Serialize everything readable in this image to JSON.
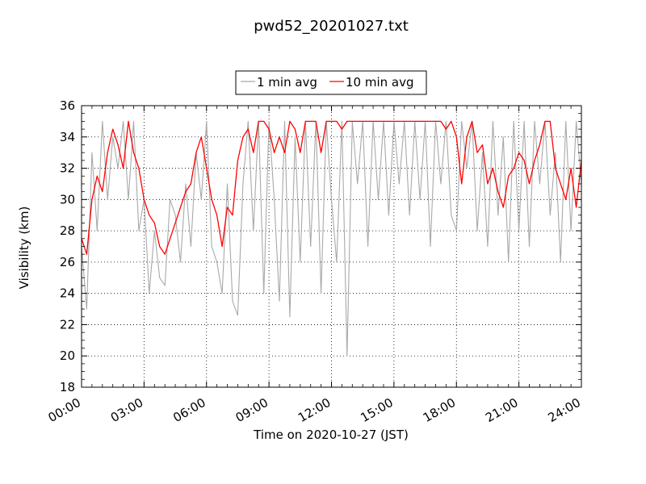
{
  "chart_data": {
    "type": "line",
    "title": "pwd52_20201027.txt",
    "xlabel": "Time on 2020-10-27 (JST)",
    "ylabel": "Visibility (km)",
    "xlim": [
      0,
      24
    ],
    "ylim": [
      18,
      36
    ],
    "x_ticks": [
      0,
      3,
      6,
      9,
      12,
      15,
      18,
      21,
      24
    ],
    "x_tick_labels": [
      "00:00",
      "03:00",
      "06:00",
      "09:00",
      "12:00",
      "15:00",
      "18:00",
      "21:00",
      "24:00"
    ],
    "y_ticks": [
      18,
      20,
      22,
      24,
      26,
      28,
      30,
      32,
      34,
      36
    ],
    "y_tick_labels": [
      "18",
      "20",
      "22",
      "24",
      "26",
      "28",
      "30",
      "32",
      "34",
      "36"
    ],
    "grid": true,
    "legend": {
      "placement": "top-center, above plot"
    },
    "colors": {
      "one_min": "#a9a9a9",
      "ten_min": "#ff0000"
    },
    "series": [
      {
        "name": "1 min avg",
        "color": "#a9a9a9",
        "x": [
          0.0,
          0.25,
          0.5,
          0.75,
          1.0,
          1.25,
          1.5,
          1.75,
          2.0,
          2.25,
          2.5,
          2.75,
          3.0,
          3.25,
          3.5,
          3.75,
          4.0,
          4.25,
          4.5,
          4.75,
          5.0,
          5.25,
          5.5,
          5.75,
          6.0,
          6.25,
          6.5,
          6.75,
          7.0,
          7.25,
          7.5,
          7.75,
          8.0,
          8.25,
          8.5,
          8.75,
          9.0,
          9.25,
          9.5,
          9.75,
          10.0,
          10.25,
          10.5,
          10.75,
          11.0,
          11.25,
          11.5,
          11.75,
          12.0,
          12.25,
          12.5,
          12.75,
          13.0,
          13.25,
          13.5,
          13.75,
          14.0,
          14.25,
          14.5,
          14.75,
          15.0,
          15.25,
          15.5,
          15.75,
          16.0,
          16.25,
          16.5,
          16.75,
          17.0,
          17.25,
          17.5,
          17.75,
          18.0,
          18.25,
          18.5,
          18.75,
          19.0,
          19.25,
          19.5,
          19.75,
          20.0,
          20.25,
          20.5,
          20.75,
          21.0,
          21.25,
          21.5,
          21.75,
          22.0,
          22.25,
          22.5,
          22.75,
          23.0,
          23.25,
          23.5,
          23.75,
          24.0
        ],
        "y": [
          27.0,
          23.0,
          33.0,
          28.0,
          35.0,
          30.0,
          34.0,
          32.0,
          35.0,
          30.0,
          35.0,
          28.0,
          30.0,
          24.0,
          28.0,
          25.0,
          24.5,
          30.0,
          29.0,
          26.0,
          31.0,
          27.0,
          33.0,
          30.0,
          35.0,
          27.0,
          26.0,
          24.0,
          31.0,
          23.5,
          22.6,
          31.0,
          35.0,
          28.0,
          35.0,
          24.0,
          35.0,
          30.0,
          23.5,
          35.0,
          22.5,
          34.0,
          26.0,
          35.0,
          27.0,
          35.0,
          24.0,
          35.0,
          30.0,
          26.0,
          35.0,
          20.0,
          35.0,
          31.0,
          35.0,
          27.0,
          35.0,
          30.0,
          35.0,
          29.0,
          35.0,
          31.0,
          35.0,
          29.0,
          35.0,
          30.0,
          35.0,
          27.0,
          35.0,
          31.0,
          35.0,
          29.0,
          28.0,
          35.0,
          32.0,
          35.0,
          28.0,
          33.0,
          27.0,
          35.0,
          29.0,
          34.0,
          26.0,
          35.0,
          28.0,
          35.0,
          27.0,
          35.0,
          31.0,
          35.0,
          29.0,
          33.0,
          26.0,
          35.0,
          28.0,
          35.0,
          31.0
        ]
      },
      {
        "name": "10 min avg",
        "color": "#ff0000",
        "x": [
          0.0,
          0.25,
          0.5,
          0.75,
          1.0,
          1.25,
          1.5,
          1.75,
          2.0,
          2.25,
          2.5,
          2.75,
          3.0,
          3.25,
          3.5,
          3.75,
          4.0,
          4.25,
          4.5,
          4.75,
          5.0,
          5.25,
          5.5,
          5.75,
          6.0,
          6.25,
          6.5,
          6.75,
          7.0,
          7.25,
          7.5,
          7.75,
          8.0,
          8.25,
          8.5,
          8.75,
          9.0,
          9.25,
          9.5,
          9.75,
          10.0,
          10.25,
          10.5,
          10.75,
          11.0,
          11.25,
          11.5,
          11.75,
          12.0,
          12.25,
          12.5,
          12.75,
          13.0,
          13.25,
          13.5,
          13.75,
          14.0,
          14.25,
          14.5,
          14.75,
          15.0,
          15.25,
          15.5,
          15.75,
          16.0,
          16.25,
          16.5,
          16.75,
          17.0,
          17.25,
          17.5,
          17.75,
          18.0,
          18.25,
          18.5,
          18.75,
          19.0,
          19.25,
          19.5,
          19.75,
          20.0,
          20.25,
          20.5,
          20.75,
          21.0,
          21.25,
          21.5,
          21.75,
          22.0,
          22.25,
          22.5,
          22.75,
          23.0,
          23.25,
          23.5,
          23.75,
          24.0
        ],
        "y": [
          27.5,
          26.5,
          30.0,
          31.5,
          30.5,
          33.0,
          34.5,
          33.5,
          32.0,
          35.0,
          33.0,
          32.0,
          30.0,
          29.0,
          28.5,
          27.0,
          26.5,
          27.5,
          28.5,
          29.5,
          30.5,
          31.0,
          33.0,
          34.0,
          32.0,
          30.0,
          29.0,
          27.0,
          29.5,
          29.0,
          32.5,
          34.0,
          34.5,
          33.0,
          35.0,
          35.0,
          34.5,
          33.0,
          34.0,
          33.0,
          35.0,
          34.5,
          33.0,
          35.0,
          35.0,
          35.0,
          33.0,
          35.0,
          35.0,
          35.0,
          34.5,
          35.0,
          35.0,
          35.0,
          35.0,
          35.0,
          35.0,
          35.0,
          35.0,
          35.0,
          35.0,
          35.0,
          35.0,
          35.0,
          35.0,
          35.0,
          35.0,
          35.0,
          35.0,
          35.0,
          34.5,
          35.0,
          34.0,
          31.0,
          34.0,
          35.0,
          33.0,
          33.5,
          31.0,
          32.0,
          30.5,
          29.5,
          31.5,
          32.0,
          33.0,
          32.5,
          31.0,
          32.5,
          33.5,
          35.0,
          35.0,
          32.0,
          31.0,
          30.0,
          32.0,
          29.5,
          32.5
        ]
      }
    ]
  }
}
